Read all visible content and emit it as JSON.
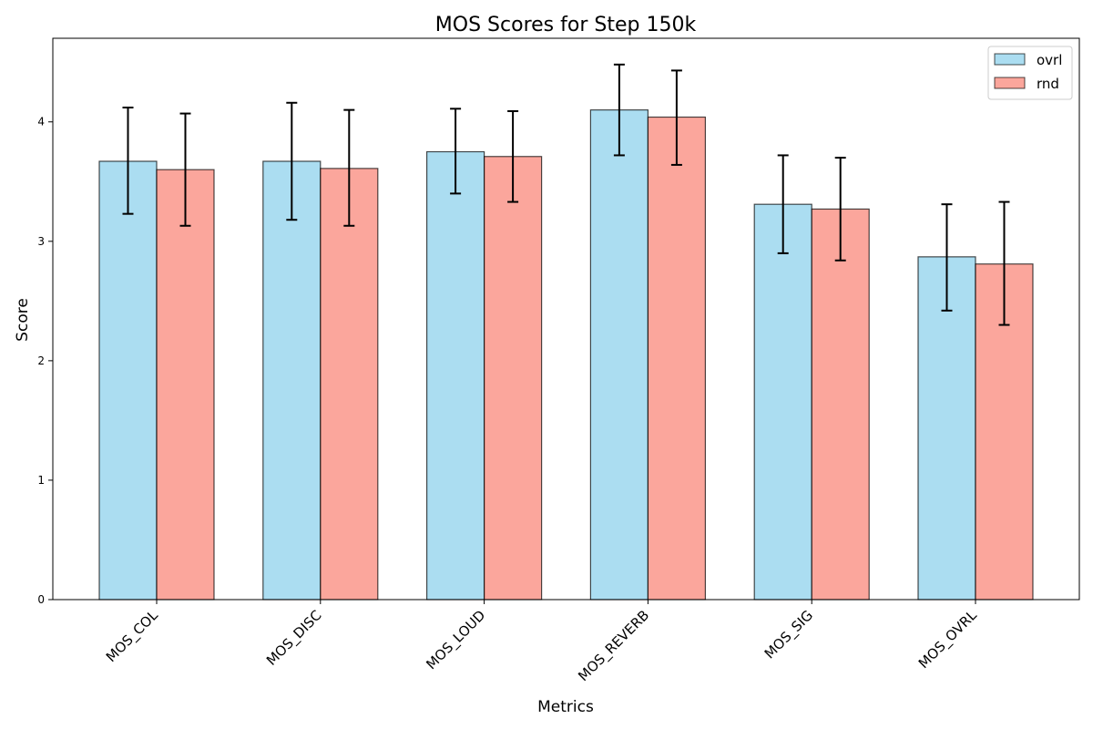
{
  "chart_data": {
    "type": "bar",
    "title": "MOS Scores for Step 150k",
    "xlabel": "Metrics",
    "ylabel": "Score",
    "categories": [
      "MOS_COL",
      "MOS_DISC",
      "MOS_LOUD",
      "MOS_REVERB",
      "MOS_SIG",
      "MOS_OVRL"
    ],
    "ylim": [
      0,
      4.7
    ],
    "yticks": [
      0,
      1,
      2,
      3,
      4
    ],
    "grid": false,
    "legend_position": "top-right",
    "series": [
      {
        "name": "ovrl",
        "color": "#87CEEB",
        "values": [
          3.67,
          3.67,
          3.75,
          4.1,
          3.31,
          2.87
        ],
        "error_low": [
          3.23,
          3.18,
          3.4,
          3.72,
          2.9,
          2.42
        ],
        "error_high": [
          4.12,
          4.16,
          4.11,
          4.48,
          3.72,
          3.31
        ]
      },
      {
        "name": "rnd",
        "color": "#FA8072",
        "values": [
          3.6,
          3.61,
          3.71,
          4.04,
          3.27,
          2.81
        ],
        "error_low": [
          3.13,
          3.13,
          3.33,
          3.64,
          2.84,
          2.3
        ],
        "error_high": [
          4.07,
          4.1,
          4.09,
          4.43,
          3.7,
          3.33
        ]
      }
    ]
  }
}
